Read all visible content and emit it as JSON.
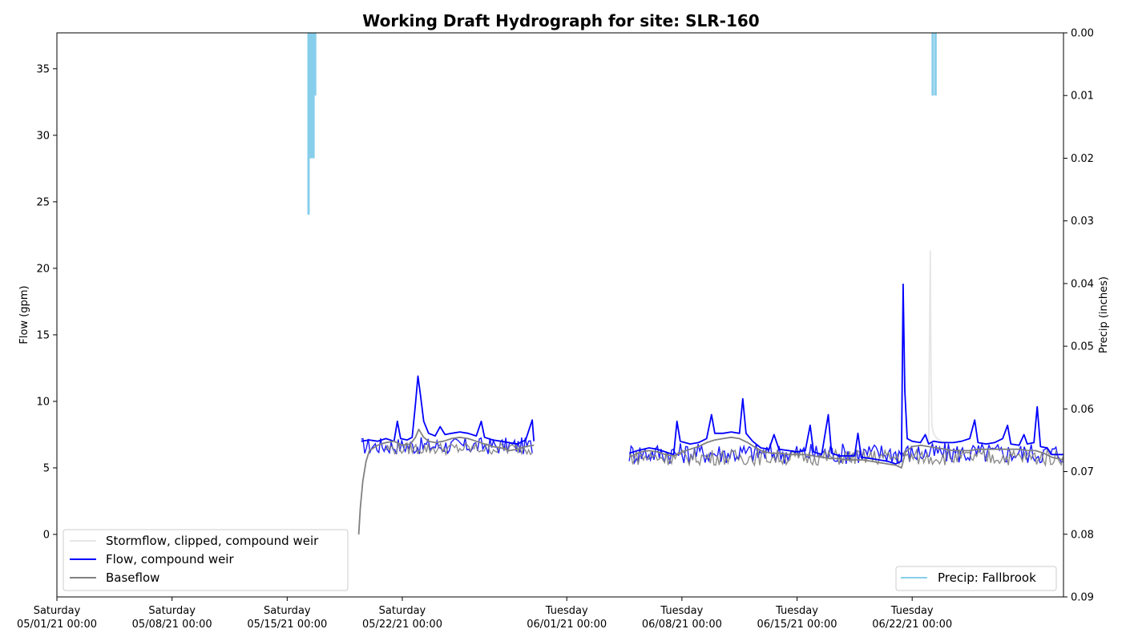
{
  "chart_data": {
    "type": "line",
    "title": "Working Draft Hydrograph for site: SLR-160",
    "ylabel": "Flow (gpm)",
    "y2label": "Precip (inches)",
    "ylim": [
      -4.7,
      37.7
    ],
    "y2lim": [
      0.09,
      0.0
    ],
    "yticks": [
      0,
      5,
      10,
      15,
      20,
      25,
      30,
      35
    ],
    "y2ticks": [
      "0.00",
      "0.01",
      "0.02",
      "0.03",
      "0.04",
      "0.05",
      "0.06",
      "0.07",
      "0.08",
      "0.09"
    ],
    "xlim": [
      0,
      61.2
    ],
    "xticks": [
      {
        "day": 0,
        "line1": "Saturday",
        "line2": "05/01/21 00:00"
      },
      {
        "day": 7,
        "line1": "Saturday",
        "line2": "05/08/21 00:00"
      },
      {
        "day": 14,
        "line1": "Saturday",
        "line2": "05/15/21 00:00"
      },
      {
        "day": 21,
        "line1": "Saturday",
        "line2": "05/22/21 00:00"
      },
      {
        "day": 31,
        "line1": "Tuesday",
        "line2": "06/01/21 00:00"
      },
      {
        "day": 38,
        "line1": "Tuesday",
        "line2": "06/08/21 00:00"
      },
      {
        "day": 45,
        "line1": "Tuesday",
        "line2": "06/15/21 00:00"
      },
      {
        "day": 52,
        "line1": "Tuesday",
        "line2": "06/22/21 00:00"
      }
    ],
    "legend_left": {
      "placement": "lower-left",
      "entries": [
        {
          "name": "Stormflow, clipped, compound weir",
          "color": "#e6e6e6"
        },
        {
          "name": "Flow, compound weir",
          "color": "#0000ff"
        },
        {
          "name": "Baseflow",
          "color": "#808080"
        }
      ]
    },
    "legend_right": {
      "placement": "lower-right",
      "entries": [
        {
          "name": "Precip: Fallbrook",
          "color": "#87ceeb"
        }
      ]
    },
    "series": [
      {
        "key": "stormflow",
        "color": "#e6e6e6",
        "points": [
          [
            53.0,
            6.8
          ],
          [
            53.05,
            14.0
          ],
          [
            53.1,
            21.3
          ],
          [
            53.15,
            12.0
          ],
          [
            53.2,
            8.2
          ],
          [
            53.3,
            7.6
          ],
          [
            53.5,
            7.2
          ],
          [
            53.8,
            7.0
          ],
          [
            54.2,
            6.9
          ]
        ]
      },
      {
        "key": "flow-a",
        "color": "#0000ff",
        "points": [
          [
            18.5,
            7.0
          ],
          [
            19.0,
            7.1
          ],
          [
            19.5,
            7.0
          ],
          [
            20.0,
            7.2
          ],
          [
            20.5,
            7.0
          ],
          [
            20.7,
            8.5
          ],
          [
            20.9,
            7.2
          ],
          [
            21.3,
            7.1
          ],
          [
            21.6,
            7.3
          ],
          [
            21.8,
            9.8
          ],
          [
            21.95,
            11.9
          ],
          [
            22.1,
            10.5
          ],
          [
            22.3,
            8.5
          ],
          [
            22.6,
            7.6
          ],
          [
            23.0,
            7.4
          ],
          [
            23.3,
            8.1
          ],
          [
            23.6,
            7.5
          ],
          [
            24.0,
            7.6
          ],
          [
            24.5,
            7.7
          ],
          [
            25.0,
            7.6
          ],
          [
            25.5,
            7.4
          ],
          [
            25.8,
            8.5
          ],
          [
            26.0,
            7.3
          ],
          [
            26.5,
            7.1
          ],
          [
            27.0,
            7.0
          ],
          [
            27.5,
            6.9
          ],
          [
            28.0,
            6.8
          ],
          [
            28.5,
            7.1
          ],
          [
            28.9,
            8.6
          ],
          [
            29.0,
            7.0
          ]
        ]
      },
      {
        "key": "flow-b",
        "color": "#0000ff",
        "points": [
          [
            34.8,
            6.1
          ],
          [
            35.3,
            6.3
          ],
          [
            36.0,
            6.5
          ],
          [
            36.5,
            6.4
          ],
          [
            37.0,
            6.2
          ],
          [
            37.5,
            6.0
          ],
          [
            37.7,
            8.5
          ],
          [
            37.9,
            7.0
          ],
          [
            38.5,
            6.8
          ],
          [
            39.0,
            6.9
          ],
          [
            39.5,
            7.2
          ],
          [
            39.8,
            9.0
          ],
          [
            40.0,
            7.6
          ],
          [
            40.5,
            7.6
          ],
          [
            41.0,
            7.7
          ],
          [
            41.5,
            7.6
          ],
          [
            41.7,
            10.2
          ],
          [
            41.9,
            7.6
          ],
          [
            42.3,
            7.0
          ],
          [
            42.8,
            6.5
          ],
          [
            43.3,
            6.4
          ],
          [
            43.6,
            7.5
          ],
          [
            43.9,
            6.4
          ],
          [
            44.5,
            6.3
          ],
          [
            45.0,
            6.2
          ],
          [
            45.5,
            6.3
          ],
          [
            45.8,
            8.2
          ],
          [
            46.0,
            6.2
          ],
          [
            46.5,
            6.0
          ],
          [
            46.9,
            9.0
          ],
          [
            47.1,
            6.1
          ],
          [
            47.6,
            5.9
          ],
          [
            48.0,
            5.9
          ],
          [
            48.5,
            5.9
          ],
          [
            48.7,
            7.6
          ],
          [
            48.9,
            5.8
          ],
          [
            49.5,
            5.7
          ],
          [
            50.0,
            5.6
          ],
          [
            50.5,
            5.5
          ],
          [
            51.0,
            5.3
          ],
          [
            51.35,
            5.5
          ],
          [
            51.45,
            18.8
          ],
          [
            51.55,
            10.8
          ],
          [
            51.7,
            7.2
          ],
          [
            52.0,
            7.0
          ],
          [
            52.5,
            6.9
          ],
          [
            52.8,
            7.5
          ],
          [
            53.0,
            6.8
          ],
          [
            53.3,
            7.0
          ],
          [
            53.8,
            6.9
          ],
          [
            54.5,
            6.9
          ],
          [
            55.0,
            7.0
          ],
          [
            55.5,
            7.2
          ],
          [
            55.8,
            8.6
          ],
          [
            56.0,
            6.9
          ],
          [
            56.5,
            6.8
          ],
          [
            57.0,
            6.9
          ],
          [
            57.5,
            7.2
          ],
          [
            57.8,
            8.2
          ],
          [
            58.0,
            6.8
          ],
          [
            58.5,
            6.7
          ],
          [
            58.8,
            7.5
          ],
          [
            59.0,
            6.8
          ],
          [
            59.4,
            6.9
          ],
          [
            59.6,
            9.6
          ],
          [
            59.8,
            6.6
          ],
          [
            60.2,
            6.5
          ],
          [
            60.5,
            6.0
          ],
          [
            61.2,
            6.0
          ]
        ]
      },
      {
        "key": "baseflow-a",
        "color": "#808080",
        "points": [
          [
            18.35,
            0.0
          ],
          [
            18.45,
            2.0
          ],
          [
            18.6,
            4.0
          ],
          [
            18.8,
            5.5
          ],
          [
            19.0,
            6.3
          ],
          [
            19.5,
            6.7
          ],
          [
            20.0,
            6.9
          ],
          [
            20.5,
            7.0
          ],
          [
            21.0,
            6.7
          ],
          [
            21.5,
            6.8
          ],
          [
            21.8,
            7.3
          ],
          [
            22.0,
            7.9
          ],
          [
            22.3,
            7.3
          ],
          [
            22.6,
            7.0
          ],
          [
            23.0,
            6.9
          ],
          [
            23.5,
            7.0
          ],
          [
            24.0,
            7.2
          ],
          [
            24.5,
            7.3
          ],
          [
            25.0,
            7.2
          ],
          [
            25.5,
            7.0
          ],
          [
            26.0,
            6.8
          ],
          [
            26.5,
            6.6
          ],
          [
            27.0,
            6.5
          ],
          [
            27.5,
            6.3
          ],
          [
            28.0,
            6.4
          ],
          [
            28.5,
            6.6
          ],
          [
            29.0,
            6.7
          ]
        ]
      },
      {
        "key": "baseflow-b",
        "color": "#808080",
        "points": [
          [
            34.8,
            5.8
          ],
          [
            35.5,
            6.2
          ],
          [
            36.0,
            6.3
          ],
          [
            36.5,
            6.2
          ],
          [
            37.0,
            6.0
          ],
          [
            37.5,
            5.9
          ],
          [
            38.0,
            6.2
          ],
          [
            38.5,
            6.4
          ],
          [
            39.0,
            6.6
          ],
          [
            39.5,
            6.9
          ],
          [
            40.0,
            7.1
          ],
          [
            40.5,
            7.2
          ],
          [
            41.0,
            7.3
          ],
          [
            41.5,
            7.2
          ],
          [
            42.0,
            6.9
          ],
          [
            42.5,
            6.5
          ],
          [
            43.0,
            6.2
          ],
          [
            43.5,
            6.1
          ],
          [
            44.0,
            6.1
          ],
          [
            44.5,
            6.0
          ],
          [
            45.0,
            6.0
          ],
          [
            45.5,
            6.0
          ],
          [
            46.0,
            5.9
          ],
          [
            46.5,
            5.8
          ],
          [
            47.0,
            5.7
          ],
          [
            47.5,
            5.7
          ],
          [
            48.0,
            5.6
          ],
          [
            48.5,
            5.6
          ],
          [
            49.0,
            5.6
          ],
          [
            49.5,
            5.5
          ],
          [
            50.0,
            5.4
          ],
          [
            50.5,
            5.3
          ],
          [
            51.0,
            5.2
          ],
          [
            51.35,
            5.0
          ],
          [
            51.6,
            6.2
          ],
          [
            52.0,
            6.6
          ],
          [
            52.5,
            6.7
          ],
          [
            53.0,
            6.6
          ],
          [
            53.5,
            6.5
          ],
          [
            54.0,
            6.4
          ],
          [
            54.5,
            6.3
          ],
          [
            55.0,
            6.3
          ],
          [
            55.5,
            6.3
          ],
          [
            56.0,
            6.4
          ],
          [
            56.5,
            6.4
          ],
          [
            57.0,
            6.4
          ],
          [
            57.5,
            6.4
          ],
          [
            58.0,
            6.4
          ],
          [
            58.5,
            6.4
          ],
          [
            59.0,
            6.3
          ],
          [
            59.5,
            6.3
          ],
          [
            60.0,
            6.1
          ],
          [
            60.5,
            5.8
          ],
          [
            61.2,
            5.6
          ]
        ]
      }
    ],
    "base_noise_blocks": [
      {
        "x": [
          18.5,
          29.0
        ],
        "y": [
          6.0,
          7.3
        ],
        "color": "#0000ff"
      },
      {
        "x": [
          34.8,
          61.2
        ],
        "y": [
          5.3,
          6.9
        ],
        "color": "#0000ff"
      },
      {
        "x": [
          20.0,
          29.0
        ],
        "y": [
          6.0,
          6.9
        ],
        "color": "#808080"
      },
      {
        "x": [
          34.8,
          61.2
        ],
        "y": [
          5.2,
          6.4
        ],
        "color": "#808080"
      }
    ],
    "precip": {
      "color": "#87ceeb",
      "bars": [
        {
          "x": 15.3,
          "depth": 0.029
        },
        {
          "x": 15.4,
          "depth": 0.02
        },
        {
          "x": 15.5,
          "depth": 0.02
        },
        {
          "x": 15.6,
          "depth": 0.02
        },
        {
          "x": 15.7,
          "depth": 0.01
        },
        {
          "x": 53.25,
          "depth": 0.01
        },
        {
          "x": 53.42,
          "depth": 0.01
        }
      ]
    }
  }
}
